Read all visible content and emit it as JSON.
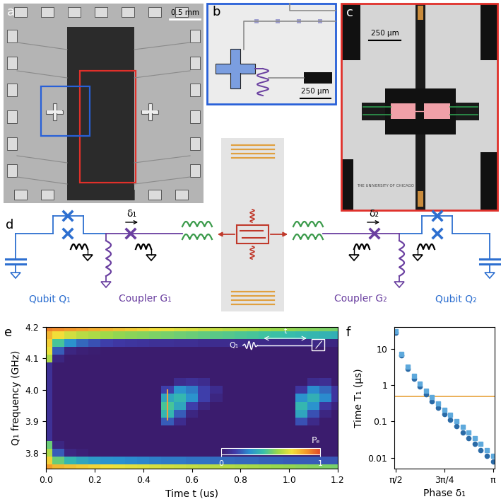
{
  "panels": {
    "a": {
      "label": "a",
      "scale_bar": "0.5 mm"
    },
    "b": {
      "label": "b",
      "scale_bar": "250 µm"
    },
    "c": {
      "label": "c",
      "scale_bar": "250 µm",
      "logo": "THE UNIVERSITY OF CHICAGO"
    },
    "d": {
      "label": "d",
      "qubit_1": "Qubit Q₁",
      "coupler_1": "Coupler G₁",
      "coupler_2": "Coupler G₂",
      "qubit_2": "Qubit Q₂",
      "phase_1": "δ₁",
      "phase_2": "δ₂"
    }
  },
  "chart_data": [
    {
      "type": "heatmap",
      "panel_label": "e",
      "xlabel": "Time t (us)",
      "ylabel": "Q₁ frequency (GHz)",
      "x": [
        0.0,
        0.05,
        0.1,
        0.15,
        0.2,
        0.25,
        0.3,
        0.35,
        0.4,
        0.45,
        0.5,
        0.55,
        0.6,
        0.65,
        0.7,
        0.75,
        0.8,
        0.85,
        0.9,
        0.95,
        1.0,
        1.05,
        1.1,
        1.15,
        1.2
      ],
      "y": [
        3.75,
        3.775,
        3.8,
        3.825,
        3.85,
        3.875,
        3.9,
        3.925,
        3.95,
        3.975,
        4.0,
        4.025,
        4.05,
        4.075,
        4.1,
        4.125,
        4.15,
        4.175,
        4.2
      ],
      "values": [
        [
          0.85,
          0.8,
          0.78,
          0.76,
          0.74,
          0.72,
          0.7,
          0.69,
          0.68,
          0.67,
          0.66,
          0.65,
          0.64,
          0.63,
          0.62,
          0.61,
          0.6,
          0.59,
          0.58,
          0.57,
          0.56,
          0.55,
          0.54,
          0.53,
          0.52
        ],
        [
          0.75,
          0.5,
          0.4,
          0.35,
          0.32,
          0.3,
          0.29,
          0.28,
          0.27,
          0.26,
          0.25,
          0.25,
          0.24,
          0.24,
          0.23,
          0.23,
          0.22,
          0.22,
          0.21,
          0.21,
          0.2,
          0.2,
          0.2,
          0.19,
          0.19
        ],
        [
          0.6,
          0.2,
          0.05,
          0.02,
          0,
          0,
          0,
          0,
          0,
          0,
          0,
          0,
          0,
          0,
          0,
          0,
          0,
          0,
          0,
          0,
          0,
          0,
          0,
          0,
          0
        ],
        [
          0.5,
          0.05,
          0,
          0,
          0,
          0,
          0,
          0,
          0,
          0,
          0,
          0,
          0,
          0,
          0,
          0,
          0,
          0,
          0,
          0,
          0,
          0,
          0,
          0,
          0
        ],
        [
          0.1,
          0,
          0,
          0,
          0,
          0,
          0,
          0,
          0,
          0,
          0,
          0,
          0,
          0,
          0,
          0,
          0,
          0,
          0,
          0,
          0,
          0,
          0,
          0,
          0
        ],
        [
          0.1,
          0,
          0,
          0,
          0,
          0,
          0,
          0,
          0,
          0,
          0,
          0,
          0,
          0,
          0,
          0,
          0,
          0,
          0,
          0,
          0,
          0,
          0,
          0,
          0
        ],
        [
          0.1,
          0,
          0,
          0,
          0,
          0,
          0,
          0,
          0,
          0,
          0.2,
          0.08,
          0,
          0,
          0,
          0,
          0,
          0,
          0,
          0,
          0,
          0.18,
          0.07,
          0,
          0
        ],
        [
          0.1,
          0,
          0,
          0,
          0,
          0,
          0,
          0,
          0,
          0,
          0.4,
          0.2,
          0.05,
          0,
          0,
          0,
          0,
          0,
          0,
          0,
          0,
          0.35,
          0.18,
          0.05,
          0
        ],
        [
          0.1,
          0,
          0,
          0,
          0,
          0,
          0,
          0,
          0,
          0,
          0.45,
          0.35,
          0.15,
          0.05,
          0,
          0,
          0,
          0,
          0,
          0,
          0,
          0.4,
          0.3,
          0.12,
          0.04
        ],
        [
          0.1,
          0,
          0,
          0,
          0,
          0,
          0,
          0,
          0,
          0,
          0.35,
          0.4,
          0.3,
          0.15,
          0.05,
          0,
          0,
          0,
          0,
          0,
          0,
          0.3,
          0.38,
          0.28,
          0.12
        ],
        [
          0.1,
          0,
          0,
          0,
          0,
          0,
          0,
          0,
          0,
          0,
          0.15,
          0.3,
          0.25,
          0.15,
          0.08,
          0,
          0,
          0,
          0,
          0,
          0,
          0.12,
          0.28,
          0.22,
          0.12
        ],
        [
          0.1,
          0,
          0,
          0,
          0,
          0,
          0,
          0,
          0,
          0,
          0,
          0.08,
          0.1,
          0.08,
          0,
          0,
          0,
          0,
          0,
          0,
          0,
          0,
          0.08,
          0.09,
          0
        ],
        [
          0.1,
          0,
          0,
          0,
          0,
          0,
          0,
          0,
          0,
          0,
          0,
          0,
          0,
          0,
          0,
          0,
          0,
          0,
          0,
          0,
          0,
          0,
          0,
          0,
          0
        ],
        [
          0.1,
          0,
          0,
          0,
          0,
          0,
          0,
          0,
          0,
          0,
          0,
          0,
          0,
          0,
          0,
          0,
          0,
          0,
          0,
          0,
          0,
          0,
          0,
          0,
          0
        ],
        [
          0.6,
          0.05,
          0,
          0,
          0,
          0,
          0,
          0,
          0,
          0,
          0,
          0,
          0,
          0,
          0,
          0,
          0,
          0,
          0,
          0,
          0,
          0,
          0,
          0,
          0
        ],
        [
          0.7,
          0.2,
          0.05,
          0.02,
          0.01,
          0,
          0,
          0,
          0,
          0,
          0,
          0,
          0,
          0,
          0,
          0,
          0,
          0,
          0,
          0,
          0,
          0,
          0,
          0,
          0
        ],
        [
          0.75,
          0.45,
          0.3,
          0.22,
          0.18,
          0.15,
          0.13,
          0.12,
          0.11,
          0.1,
          0.1,
          0.09,
          0.09,
          0.08,
          0.08,
          0.08,
          0.07,
          0.07,
          0.07,
          0.06,
          0.06,
          0.06,
          0.06,
          0.05,
          0.05
        ],
        [
          0.8,
          0.72,
          0.66,
          0.62,
          0.6,
          0.58,
          0.56,
          0.55,
          0.54,
          0.53,
          0.52,
          0.51,
          0.5,
          0.49,
          0.48,
          0.47,
          0.46,
          0.45,
          0.44,
          0.43,
          0.42,
          0.41,
          0.4,
          0.39,
          0.38
        ],
        [
          0.9,
          0.88,
          0.86,
          0.84,
          0.82,
          0.8,
          0.78,
          0.76,
          0.74,
          0.72,
          0.7,
          0.68,
          0.67,
          0.65,
          0.64,
          0.62,
          0.61,
          0.6,
          0.58,
          0.57,
          0.56,
          0.55,
          0.54,
          0.53,
          0.52
        ]
      ],
      "xlim": [
        0.0,
        1.2
      ],
      "ylim": [
        3.75,
        4.2
      ],
      "xticks": [
        0.0,
        0.2,
        0.4,
        0.6,
        0.8,
        1.0,
        1.2
      ],
      "yticks": [
        3.8,
        3.9,
        4.0,
        4.1,
        4.2
      ],
      "colorbar": {
        "label": "Pₑ",
        "range": [
          0,
          1
        ],
        "ticks": [
          0,
          1
        ]
      },
      "inset": {
        "qubit": "Q₁",
        "delay": "t"
      },
      "reference_line": {
        "x": 0.5,
        "y": [
          3.905,
          4.0
        ],
        "color": "#f0a040"
      }
    },
    {
      "type": "scatter",
      "panel_label": "f",
      "xlabel": "Phase δ₁",
      "ylabel": "Time T₁ (µs)",
      "log": "y",
      "x": [
        1.571,
        1.669,
        1.767,
        1.865,
        1.963,
        2.062,
        2.16,
        2.258,
        2.356,
        2.454,
        2.553,
        2.651,
        2.749,
        2.847,
        2.945,
        3.043,
        3.142
      ],
      "series": [
        {
          "marker": "circle",
          "color": "#2a6aa6",
          "values": [
            28,
            6.5,
            2.8,
            1.5,
            0.9,
            0.55,
            0.36,
            0.24,
            0.16,
            0.11,
            0.075,
            0.05,
            0.035,
            0.024,
            0.016,
            0.011,
            0.008
          ]
        },
        {
          "marker": "square",
          "color": "#5ea9dc",
          "values": [
            30,
            7.2,
            3.2,
            1.8,
            1.1,
            0.7,
            0.46,
            0.31,
            0.21,
            0.15,
            0.1,
            0.07,
            0.05,
            0.035,
            0.024,
            0.016,
            0.011
          ]
        }
      ],
      "reference_line": {
        "y": 0.5,
        "color": "#e8a33d"
      },
      "xlim": [
        1.55,
        3.17
      ],
      "ylim": [
        0.005,
        40
      ],
      "xticks": [
        {
          "value": 1.5708,
          "label": "π/2"
        },
        {
          "value": 2.3562,
          "label": "3π/4"
        },
        {
          "value": 3.1416,
          "label": "π"
        }
      ],
      "yticks": [
        0.01,
        0.1,
        1,
        10
      ]
    }
  ]
}
